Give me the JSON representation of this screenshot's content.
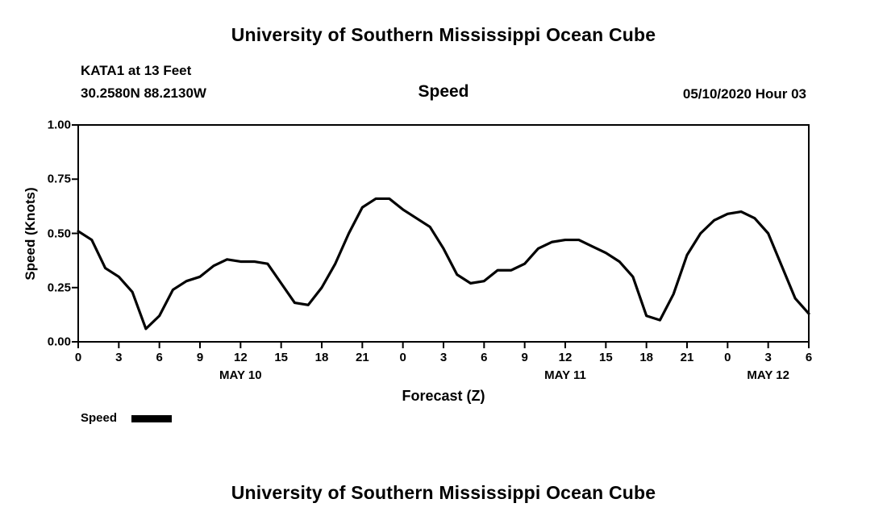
{
  "page": {
    "top_title": "University of Southern Mississippi Ocean Cube",
    "bottom_title": "University of Southern Mississippi Ocean Cube"
  },
  "header": {
    "station_line": "KATA1 at 13 Feet",
    "coordinates_line": "30.2580N 88.2130W",
    "plot_title": "Speed",
    "forecast_datetime": "05/10/2020 Hour 03"
  },
  "chart_data": {
    "type": "line",
    "title": "Speed",
    "xlabel": "Forecast (Z)",
    "ylabel": "Speed (Knots)",
    "x_range": [
      0,
      54
    ],
    "ylim": [
      0.0,
      1.0
    ],
    "grid": false,
    "line_color": "#000000",
    "legend_position": "bottom-left",
    "yticks": [
      {
        "value": 0.0,
        "label": "0.00"
      },
      {
        "value": 0.25,
        "label": "0.25"
      },
      {
        "value": 0.5,
        "label": "0.50"
      },
      {
        "value": 0.75,
        "label": "0.75"
      },
      {
        "value": 1.0,
        "label": "1.00"
      }
    ],
    "xticks": [
      {
        "hour": 0,
        "label": "0"
      },
      {
        "hour": 3,
        "label": "3"
      },
      {
        "hour": 6,
        "label": "6"
      },
      {
        "hour": 9,
        "label": "9"
      },
      {
        "hour": 12,
        "label": "12"
      },
      {
        "hour": 15,
        "label": "15"
      },
      {
        "hour": 18,
        "label": "18"
      },
      {
        "hour": 21,
        "label": "21"
      },
      {
        "hour": 24,
        "label": "0"
      },
      {
        "hour": 27,
        "label": "3"
      },
      {
        "hour": 30,
        "label": "6"
      },
      {
        "hour": 33,
        "label": "9"
      },
      {
        "hour": 36,
        "label": "12"
      },
      {
        "hour": 39,
        "label": "15"
      },
      {
        "hour": 42,
        "label": "18"
      },
      {
        "hour": 45,
        "label": "21"
      },
      {
        "hour": 48,
        "label": "0"
      },
      {
        "hour": 51,
        "label": "3"
      },
      {
        "hour": 54,
        "label": "6"
      }
    ],
    "day_labels": [
      {
        "hour": 12,
        "label": "MAY 10"
      },
      {
        "hour": 36,
        "label": "MAY 11"
      },
      {
        "hour": 51,
        "label": "MAY 12"
      }
    ],
    "series": [
      {
        "name": "Speed",
        "x_start_hour": 0,
        "x_step_hours": 1,
        "values": [
          0.51,
          0.47,
          0.34,
          0.3,
          0.23,
          0.06,
          0.12,
          0.24,
          0.28,
          0.3,
          0.35,
          0.38,
          0.37,
          0.37,
          0.36,
          0.27,
          0.18,
          0.17,
          0.25,
          0.36,
          0.5,
          0.62,
          0.66,
          0.66,
          0.61,
          0.57,
          0.53,
          0.43,
          0.31,
          0.27,
          0.28,
          0.33,
          0.33,
          0.36,
          0.43,
          0.46,
          0.47,
          0.47,
          0.44,
          0.41,
          0.37,
          0.3,
          0.12,
          0.1,
          0.22,
          0.4,
          0.5,
          0.56,
          0.59,
          0.6,
          0.57,
          0.5,
          0.35,
          0.2,
          0.13
        ]
      }
    ],
    "legend": [
      {
        "label": "Speed",
        "marker_color": "#000000"
      }
    ]
  }
}
